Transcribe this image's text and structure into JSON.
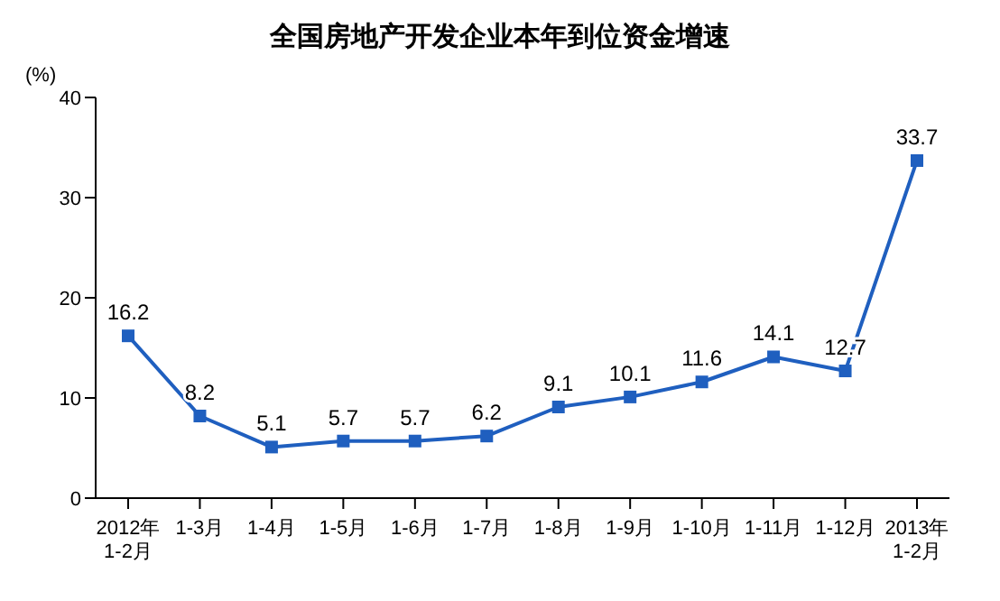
{
  "chart_data": {
    "type": "line",
    "title": "全国房地产开发企业本年到位资金增速",
    "ylabel": "(%)",
    "categories": [
      "2012年\n1-2月",
      "1-3月",
      "1-4月",
      "1-5月",
      "1-6月",
      "1-7月",
      "1-8月",
      "1-9月",
      "1-10月",
      "1-11月",
      "1-12月",
      "2013年\n1-2月"
    ],
    "series": [
      {
        "color": "#1f5fbf",
        "values": [
          16.2,
          8.2,
          5.1,
          5.7,
          5.7,
          6.2,
          9.1,
          10.1,
          11.6,
          14.1,
          12.7,
          33.7
        ]
      }
    ],
    "ylim": [
      0,
      40
    ],
    "yticks": [
      0,
      10,
      20,
      30,
      40
    ],
    "marker": "square",
    "line_style": "solid",
    "data_labels": true,
    "grid": false
  }
}
